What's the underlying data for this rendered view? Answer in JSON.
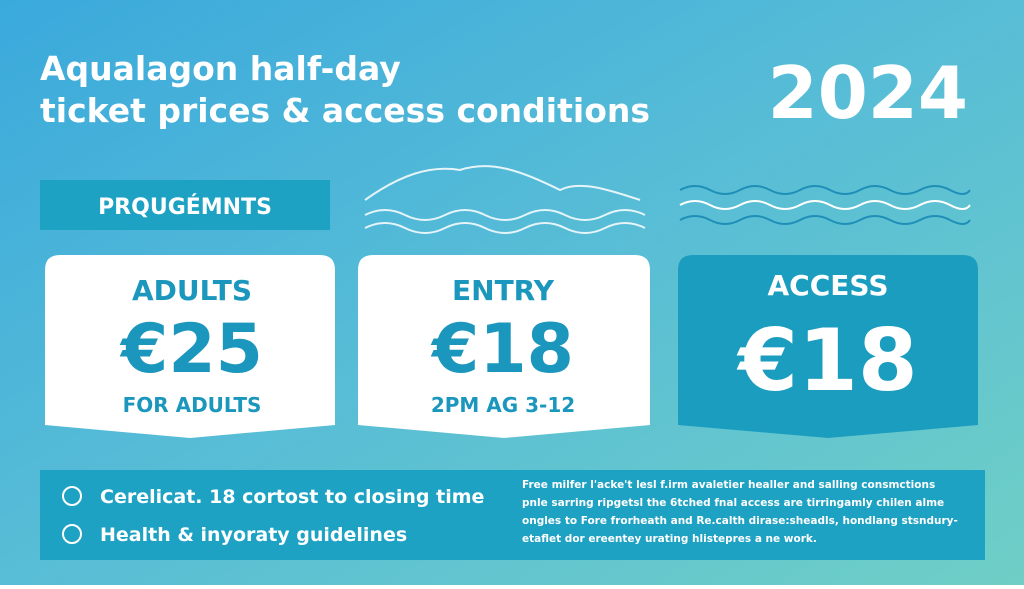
{
  "header": {
    "title_lines": [
      "Aqualagon half-day",
      "ticket prices & access conditions"
    ],
    "year": "2024"
  },
  "label": "PRQUGÉMNTS",
  "cards": [
    {
      "heading": "ADULTS",
      "price": "€25",
      "note": "FOR ADULTS"
    },
    {
      "heading": "ENTRY",
      "price": "€18",
      "note": "2PM AG 3-12"
    },
    {
      "heading": "ACCESS",
      "price": "€18"
    }
  ],
  "footer": {
    "items": [
      "Cerelicat. 18 cortost to closing time",
      "Health & inyoraty guidelines"
    ],
    "paragraph_lines": [
      "Free milfer l'acke't lesl f.irm avaletier healler and salling consmctions",
      "pnle sarring ripgetsl the 6tched fnal access are tirringamly chilen alme",
      "ongles to Fore frorheath and Re.calth dirase:sheadls, hondlang stsndury-",
      "etaflet dor ereentey urating hlistepres a ne work."
    ]
  }
}
